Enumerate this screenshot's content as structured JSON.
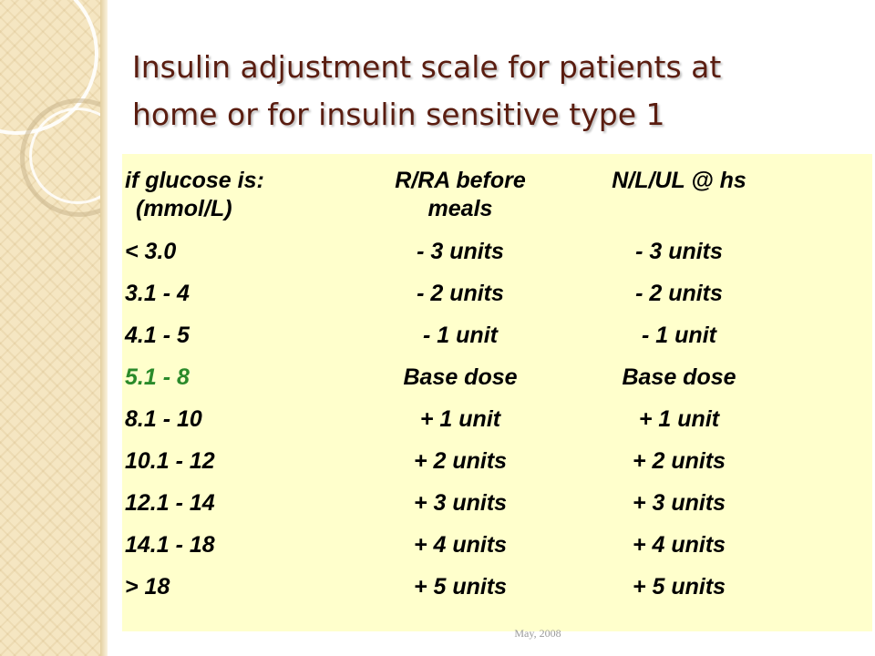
{
  "slide": {
    "title_lines": [
      "Insulin adjustment scale for patients at",
      "home or for insulin sensitive type 1"
    ],
    "footer": "May, 2008",
    "colors": {
      "title": "#5a1d10",
      "panel": "#ffffcc",
      "base_row": "#2a8a2a",
      "side_strip": "#f5e6c2"
    }
  },
  "table": {
    "headers": [
      {
        "line1": "if glucose is:",
        "line2": "(mmol/L)"
      },
      {
        "line1": "R/RA before",
        "line2": "meals"
      },
      {
        "line1": "N/L/UL @ hs",
        "line2": ""
      }
    ],
    "rows": [
      [
        "< 3.0",
        "- 3 units",
        "- 3 units"
      ],
      [
        "3.1 - 4",
        "- 2 units",
        "- 2 units"
      ],
      [
        "4.1 - 5",
        "- 1 unit",
        "- 1 unit"
      ],
      [
        "5.1 - 8",
        "Base dose",
        "Base dose"
      ],
      [
        "8.1 - 10",
        "+ 1 unit",
        "+ 1 unit"
      ],
      [
        "10.1 - 12",
        "+ 2 units",
        "+ 2 units"
      ],
      [
        "12.1 - 14",
        "+ 3 units",
        "+ 3 units"
      ],
      [
        "14.1 - 18",
        "+ 4 units",
        "+ 4 units"
      ],
      [
        "> 18",
        "+ 5 units",
        "+ 5 units"
      ]
    ]
  }
}
